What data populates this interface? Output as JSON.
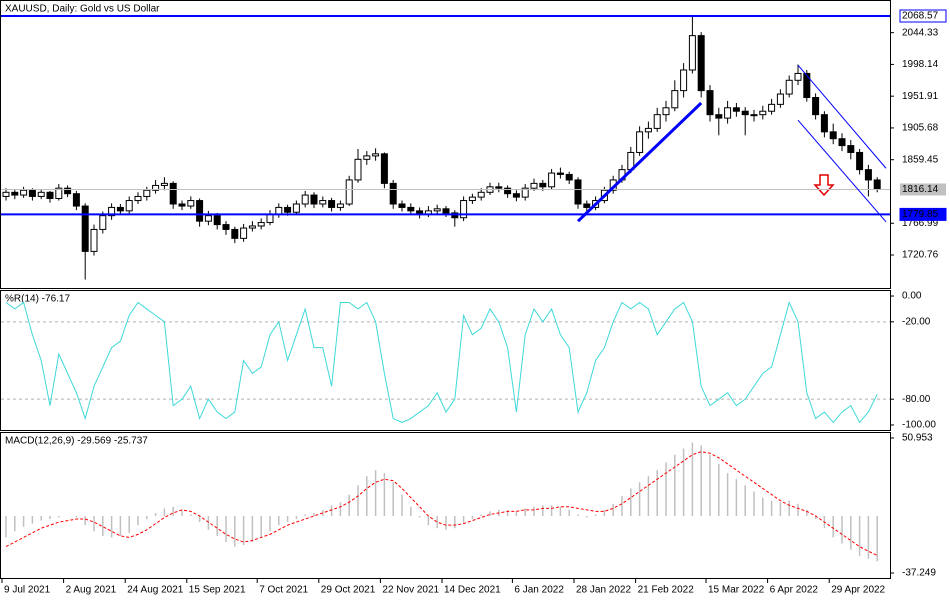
{
  "chart_data": [
    {
      "type": "candlestick",
      "title": "XAUUSD, Daily:  Gold vs US Dollar",
      "ylim": [
        1674.2,
        2087.5
      ],
      "yticks": [
        2044.33,
        1998.14,
        1951.91,
        1905.68,
        1859.45,
        1766.99,
        1720.76
      ],
      "hlines": [
        2068.57,
        1779.85
      ],
      "hline_color": "#0000ff",
      "last_price": 1816.14,
      "trendlines": [
        {
          "from": [
            65,
            1770
          ],
          "to": [
            79,
            1942
          ],
          "color": "#0000ff",
          "width": 3
        },
        {
          "from": [
            90,
            1997
          ],
          "to": [
            100,
            1847
          ],
          "color": "#0000ff",
          "width": 1
        },
        {
          "from": [
            90,
            1917
          ],
          "to": [
            100,
            1769
          ],
          "color": "#0000ff",
          "width": 1
        }
      ],
      "candles": [
        [
          1806,
          1818,
          1800,
          1812
        ],
        [
          1812,
          1816,
          1802,
          1808
        ],
        [
          1808,
          1820,
          1804,
          1815
        ],
        [
          1815,
          1818,
          1800,
          1806
        ],
        [
          1806,
          1816,
          1802,
          1812
        ],
        [
          1812,
          1814,
          1797,
          1803
        ],
        [
          1803,
          1824,
          1800,
          1818
        ],
        [
          1818,
          1822,
          1805,
          1810
        ],
        [
          1810,
          1814,
          1786,
          1792
        ],
        [
          1792,
          1796,
          1685,
          1726
        ],
        [
          1726,
          1765,
          1720,
          1758
        ],
        [
          1758,
          1784,
          1752,
          1778
        ],
        [
          1778,
          1796,
          1772,
          1790
        ],
        [
          1790,
          1795,
          1779,
          1785
        ],
        [
          1785,
          1806,
          1780,
          1800
        ],
        [
          1800,
          1812,
          1795,
          1806
        ],
        [
          1806,
          1820,
          1800,
          1815
        ],
        [
          1815,
          1830,
          1810,
          1822
        ],
        [
          1822,
          1834,
          1815,
          1825
        ],
        [
          1825,
          1828,
          1788,
          1795
        ],
        [
          1795,
          1800,
          1786,
          1792
        ],
        [
          1792,
          1806,
          1788,
          1800
        ],
        [
          1800,
          1803,
          1762,
          1770
        ],
        [
          1770,
          1785,
          1764,
          1778
        ],
        [
          1778,
          1782,
          1758,
          1765
        ],
        [
          1765,
          1770,
          1750,
          1758
        ],
        [
          1758,
          1762,
          1738,
          1745
        ],
        [
          1745,
          1766,
          1740,
          1760
        ],
        [
          1760,
          1770,
          1755,
          1763
        ],
        [
          1763,
          1774,
          1758,
          1768
        ],
        [
          1768,
          1786,
          1764,
          1780
        ],
        [
          1780,
          1796,
          1775,
          1790
        ],
        [
          1790,
          1794,
          1778,
          1783
        ],
        [
          1783,
          1800,
          1779,
          1795
        ],
        [
          1795,
          1814,
          1790,
          1808
        ],
        [
          1808,
          1812,
          1789,
          1795
        ],
        [
          1795,
          1806,
          1790,
          1800
        ],
        [
          1800,
          1804,
          1784,
          1790
        ],
        [
          1790,
          1800,
          1785,
          1795
        ],
        [
          1795,
          1836,
          1792,
          1830
        ],
        [
          1830,
          1875,
          1826,
          1860
        ],
        [
          1860,
          1872,
          1852,
          1865
        ],
        [
          1865,
          1876,
          1858,
          1868
        ],
        [
          1868,
          1870,
          1818,
          1825
        ],
        [
          1825,
          1830,
          1788,
          1795
        ],
        [
          1795,
          1800,
          1784,
          1790
        ],
        [
          1790,
          1796,
          1780,
          1785
        ],
        [
          1785,
          1790,
          1774,
          1780
        ],
        [
          1780,
          1792,
          1776,
          1785
        ],
        [
          1785,
          1794,
          1780,
          1788
        ],
        [
          1788,
          1792,
          1776,
          1782
        ],
        [
          1782,
          1786,
          1762,
          1775
        ],
        [
          1775,
          1806,
          1770,
          1800
        ],
        [
          1800,
          1810,
          1795,
          1805
        ],
        [
          1805,
          1818,
          1800,
          1812
        ],
        [
          1812,
          1826,
          1808,
          1820
        ],
        [
          1820,
          1826,
          1812,
          1818
        ],
        [
          1818,
          1822,
          1804,
          1810
        ],
        [
          1810,
          1815,
          1799,
          1805
        ],
        [
          1805,
          1824,
          1800,
          1818
        ],
        [
          1818,
          1832,
          1814,
          1825
        ],
        [
          1825,
          1830,
          1814,
          1820
        ],
        [
          1820,
          1846,
          1816,
          1840
        ],
        [
          1840,
          1848,
          1832,
          1838
        ],
        [
          1838,
          1842,
          1824,
          1830
        ],
        [
          1830,
          1834,
          1788,
          1795
        ],
        [
          1795,
          1800,
          1782,
          1790
        ],
        [
          1790,
          1806,
          1786,
          1800
        ],
        [
          1800,
          1820,
          1796,
          1815
        ],
        [
          1815,
          1836,
          1810,
          1830
        ],
        [
          1830,
          1852,
          1826,
          1845
        ],
        [
          1845,
          1878,
          1840,
          1870
        ],
        [
          1870,
          1908,
          1865,
          1900
        ],
        [
          1900,
          1915,
          1890,
          1905
        ],
        [
          1905,
          1935,
          1900,
          1925
        ],
        [
          1925,
          1945,
          1915,
          1935
        ],
        [
          1935,
          1975,
          1930,
          1960
        ],
        [
          1960,
          2000,
          1950,
          1990
        ],
        [
          1990,
          2070,
          1985,
          2040
        ],
        [
          2040,
          2045,
          1950,
          1960
        ],
        [
          1960,
          1968,
          1915,
          1925
        ],
        [
          1925,
          1935,
          1895,
          1920
        ],
        [
          1920,
          1945,
          1912,
          1935
        ],
        [
          1935,
          1942,
          1922,
          1930
        ],
        [
          1930,
          1936,
          1895,
          1925
        ],
        [
          1925,
          1932,
          1915,
          1925
        ],
        [
          1925,
          1938,
          1918,
          1930
        ],
        [
          1930,
          1948,
          1925,
          1940
        ],
        [
          1940,
          1962,
          1935,
          1955
        ],
        [
          1955,
          1982,
          1950,
          1975
        ],
        [
          1975,
          1998,
          1968,
          1985
        ],
        [
          1985,
          1990,
          1944,
          1950
        ],
        [
          1950,
          1956,
          1918,
          1925
        ],
        [
          1925,
          1930,
          1892,
          1900
        ],
        [
          1900,
          1912,
          1882,
          1890
        ],
        [
          1890,
          1898,
          1872,
          1880
        ],
        [
          1880,
          1888,
          1860,
          1870
        ],
        [
          1870,
          1875,
          1838,
          1845
        ],
        [
          1845,
          1852,
          1806,
          1830
        ],
        [
          1830,
          1834,
          1812,
          1816.14
        ]
      ]
    },
    {
      "type": "line",
      "title": "%R(14) -76.17",
      "color": "#40d8d8",
      "ylim": [
        -103.9,
        3.9
      ],
      "yticks": [
        {
          "value": 0,
          "label": "0.00"
        },
        {
          "value": -20,
          "label": "-20.00"
        },
        {
          "value": -80,
          "label": "-80.00"
        },
        {
          "value": -100,
          "label": "-100.00"
        }
      ],
      "values": [
        -5,
        -10,
        -5,
        -30,
        -50,
        -85,
        -45,
        -60,
        -75,
        -95,
        -70,
        -55,
        -40,
        -35,
        -15,
        -5,
        -10,
        -15,
        -20,
        -85,
        -80,
        -70,
        -95,
        -80,
        -90,
        -95,
        -90,
        -50,
        -60,
        -55,
        -30,
        -20,
        -50,
        -30,
        -10,
        -40,
        -40,
        -70,
        -5,
        -5,
        -10,
        -5,
        -20,
        -60,
        -95,
        -98,
        -95,
        -90,
        -85,
        -75,
        -90,
        -80,
        -15,
        -30,
        -25,
        -10,
        -20,
        -40,
        -90,
        -30,
        -10,
        -20,
        -10,
        -30,
        -40,
        -90,
        -75,
        -50,
        -40,
        -20,
        -5,
        -10,
        -5,
        -10,
        -30,
        -20,
        -10,
        -5,
        -20,
        -70,
        -85,
        -80,
        -75,
        -85,
        -80,
        -70,
        -60,
        -55,
        -30,
        -5,
        -20,
        -75,
        -95,
        -90,
        -98,
        -90,
        -85,
        -98,
        -90,
        -76.17
      ]
    },
    {
      "type": "macd",
      "title": "MACD(12,26,9) -29.569 -25.737",
      "ylim": [
        -40.5,
        54.2
      ],
      "yticks": [
        50.953,
        -37.249
      ],
      "series": [
        {
          "name": "MACD",
          "color": "#c0c0c0",
          "values": [
            -14,
            -10,
            -7,
            -5,
            -3,
            -2,
            -1,
            0,
            -1,
            -6,
            -10,
            -13,
            -14,
            -13,
            -11,
            -6,
            -2,
            2,
            5,
            6,
            4,
            1,
            -4,
            -9,
            -13,
            -17,
            -20,
            -19,
            -17,
            -14,
            -10,
            -6,
            -4,
            -2,
            1,
            2,
            4,
            7,
            9,
            14,
            20,
            26,
            30,
            28,
            22,
            14,
            6,
            -1,
            -6,
            -8,
            -9,
            -8,
            -5,
            -2,
            1,
            3,
            4,
            4,
            3,
            5,
            6,
            7,
            7,
            6,
            4,
            1,
            -1,
            1,
            4,
            8,
            13,
            18,
            22,
            26,
            30,
            35,
            40,
            44,
            48,
            46,
            40,
            34,
            28,
            24,
            20,
            16,
            12,
            10,
            9,
            10,
            8,
            4,
            -2,
            -8,
            -14,
            -18,
            -22,
            -26,
            -28,
            -29.569
          ]
        },
        {
          "name": "Signal",
          "color": "#ff0000",
          "values": [
            -20,
            -17,
            -14,
            -11,
            -8,
            -6,
            -4,
            -3,
            -2,
            -2,
            -4,
            -7,
            -10,
            -13,
            -14,
            -12,
            -9,
            -5,
            -1,
            2,
            4,
            3,
            0,
            -4,
            -8,
            -12,
            -15,
            -17,
            -16,
            -14,
            -12,
            -9,
            -6,
            -4,
            -2,
            0,
            2,
            4,
            6,
            9,
            13,
            18,
            22,
            24,
            23,
            18,
            12,
            6,
            0,
            -4,
            -6,
            -6,
            -5,
            -3,
            -1,
            1,
            2,
            3,
            3,
            4,
            4,
            5,
            5,
            6,
            6,
            5,
            4,
            3,
            3,
            5,
            8,
            12,
            16,
            20,
            24,
            28,
            32,
            36,
            40,
            42,
            41,
            38,
            34,
            30,
            26,
            22,
            18,
            14,
            10,
            7,
            5,
            3,
            0,
            -4,
            -8,
            -12,
            -16,
            -20,
            -23,
            -25.737
          ]
        }
      ],
      "x_labels": [
        {
          "index": 0,
          "label": "9 Jul 2021"
        },
        {
          "index": 7,
          "label": "2 Aug 2021"
        },
        {
          "index": 14,
          "label": "24 Aug 2021"
        },
        {
          "index": 21,
          "label": "15 Sep 2021"
        },
        {
          "index": 29,
          "label": "7 Oct 2021"
        },
        {
          "index": 36,
          "label": "29 Oct 2021"
        },
        {
          "index": 43,
          "label": "22 Nov 2021"
        },
        {
          "index": 50,
          "label": "14 Dec 2021"
        },
        {
          "index": 58,
          "label": "6 Jan 2022"
        },
        {
          "index": 65,
          "label": "28 Jan 2022"
        },
        {
          "index": 72,
          "label": "21 Feb 2022"
        },
        {
          "index": 80,
          "label": "15 Mar 2022"
        },
        {
          "index": 87,
          "label": "6 Apr 2022"
        },
        {
          "index": 94,
          "label": "29 Apr 2022"
        }
      ]
    }
  ]
}
